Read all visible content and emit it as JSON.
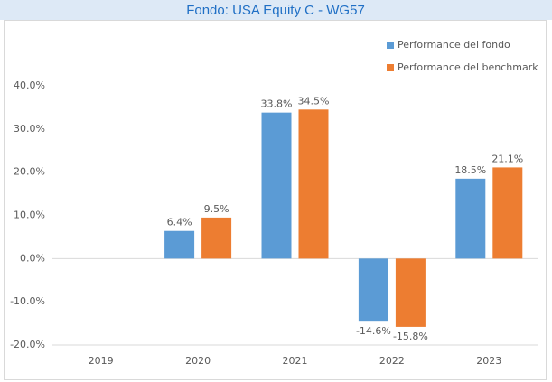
{
  "chart_data": {
    "type": "bar",
    "title": "Fondo: USA Equity C - WG57",
    "categories": [
      "2019",
      "2020",
      "2021",
      "2022",
      "2023"
    ],
    "series": [
      {
        "name": "Performance del fondo",
        "color": "#5b9bd5",
        "values": [
          null,
          6.4,
          33.8,
          -14.6,
          18.5
        ],
        "value_labels": [
          null,
          "6.4%",
          "33.8%",
          "-14.6%",
          "18.5%"
        ]
      },
      {
        "name": "Performance del benchmark",
        "color": "#ed7d31",
        "values": [
          null,
          9.5,
          34.5,
          -15.8,
          21.1
        ],
        "value_labels": [
          null,
          "9.5%",
          "34.5%",
          "-15.8%",
          "21.1%"
        ]
      }
    ],
    "ylim": [
      -20,
      40
    ],
    "yticks": [
      {
        "value": -20,
        "label": "-20.0%"
      },
      {
        "value": -10,
        "label": "-10.0%"
      },
      {
        "value": 0,
        "label": "0.0%"
      },
      {
        "value": 10,
        "label": "10.0%"
      },
      {
        "value": 20,
        "label": "20.0%"
      },
      {
        "value": 30,
        "label": "30.0%"
      },
      {
        "value": 40,
        "label": "40.0%"
      }
    ],
    "grid": false,
    "legend": "top-right"
  }
}
